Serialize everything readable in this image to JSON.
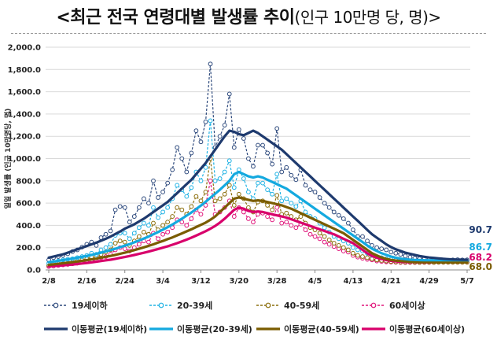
{
  "title": {
    "main": "<최근 전국 연령대별 발생률 추이",
    "sub": "(인구 10만명 당, 명)>"
  },
  "chart_data": {
    "type": "line",
    "ylabel": "일일 발생률 (인구 10만명당, 명)",
    "ylim": [
      0,
      2000
    ],
    "yticks": [
      "0.0",
      "200.0",
      "400.0",
      "600.0",
      "800.0",
      "1,000.0",
      "1,200.0",
      "1,400.0",
      "1,600.0",
      "1,800.0",
      "2,000.0"
    ],
    "xticks": [
      "2/8",
      "2/16",
      "2/24",
      "3/4",
      "3/12",
      "3/20",
      "3/28",
      "4/5",
      "4/13",
      "4/21",
      "4/29",
      "5/7"
    ],
    "x_start": "2/8",
    "x_end": "5/7",
    "series": [
      {
        "name": "19세이하",
        "kind": "daily",
        "color": "#2e4a7d",
        "values": [
          90,
          110,
          120,
          130,
          145,
          165,
          180,
          205,
          230,
          250,
          220,
          290,
          320,
          350,
          540,
          570,
          560,
          430,
          480,
          560,
          640,
          600,
          800,
          650,
          700,
          780,
          900,
          1100,
          1000,
          880,
          1050,
          1250,
          1150,
          1330,
          1850,
          1100,
          1200,
          1300,
          1580,
          1100,
          1260,
          1180,
          1000,
          930,
          1120,
          1120,
          1050,
          950,
          1270,
          880,
          920,
          850,
          810,
          900,
          760,
          720,
          700,
          650,
          600,
          560,
          520,
          490,
          460,
          420,
          360,
          300,
          300,
          260,
          220,
          200,
          190,
          180,
          160,
          150,
          140,
          125,
          115,
          105,
          100,
          100,
          95,
          90,
          90,
          85,
          85,
          90,
          92,
          90,
          91
        ]
      },
      {
        "name": "20-39세",
        "kind": "daily",
        "color": "#1fb2e4",
        "values": [
          60,
          70,
          80,
          90,
          95,
          100,
          110,
          120,
          130,
          150,
          140,
          180,
          200,
          230,
          310,
          330,
          330,
          280,
          330,
          380,
          420,
          400,
          560,
          470,
          520,
          560,
          640,
          760,
          720,
          660,
          740,
          880,
          800,
          920,
          1340,
          800,
          820,
          880,
          980,
          740,
          900,
          820,
          700,
          640,
          780,
          780,
          720,
          680,
          860,
          620,
          640,
          600,
          570,
          620,
          520,
          480,
          460,
          420,
          380,
          340,
          300,
          280,
          260,
          240,
          200,
          180,
          170,
          150,
          130,
          120,
          110,
          100,
          95,
          90,
          88,
          85,
          82,
          80,
          85,
          86,
          87,
          86,
          87,
          86,
          87,
          86,
          87,
          86,
          86.7
        ]
      },
      {
        "name": "40-59세",
        "kind": "daily",
        "color": "#8a6d0a",
        "values": [
          40,
          45,
          50,
          55,
          60,
          70,
          80,
          90,
          100,
          115,
          110,
          140,
          160,
          180,
          240,
          260,
          250,
          220,
          260,
          300,
          340,
          320,
          420,
          360,
          400,
          430,
          480,
          560,
          540,
          500,
          570,
          660,
          620,
          700,
          1000,
          620,
          640,
          680,
          760,
          580,
          680,
          640,
          560,
          520,
          610,
          620,
          580,
          540,
          670,
          500,
          510,
          480,
          450,
          480,
          420,
          380,
          360,
          330,
          300,
          270,
          240,
          220,
          200,
          180,
          150,
          130,
          120,
          110,
          100,
          90,
          85,
          80,
          75,
          72,
          70,
          68,
          70,
          68,
          67,
          68,
          68,
          67,
          68,
          68,
          68,
          68,
          68,
          68,
          68
        ]
      },
      {
        "name": "60세이상",
        "kind": "daily",
        "color": "#e0147a",
        "values": [
          30,
          35,
          40,
          45,
          50,
          55,
          60,
          70,
          80,
          90,
          85,
          110,
          120,
          140,
          180,
          200,
          190,
          170,
          200,
          230,
          260,
          250,
          330,
          280,
          320,
          340,
          380,
          450,
          430,
          400,
          460,
          540,
          500,
          580,
          800,
          500,
          520,
          560,
          620,
          480,
          560,
          520,
          460,
          430,
          500,
          510,
          480,
          450,
          560,
          420,
          430,
          400,
          380,
          410,
          360,
          320,
          300,
          280,
          250,
          230,
          210,
          190,
          170,
          160,
          130,
          115,
          105,
          95,
          90,
          80,
          76,
          72,
          70,
          68,
          67,
          66,
          67,
          66,
          66,
          67,
          67,
          67,
          68,
          68,
          68,
          68,
          68,
          68,
          68.2
        ]
      },
      {
        "name": "이동평균(19세이하)",
        "kind": "avg",
        "color": "#1e3a6e",
        "values": [
          110,
          120,
          130,
          140,
          155,
          170,
          185,
          200,
          215,
          230,
          245,
          262,
          280,
          300,
          322,
          345,
          370,
          390,
          410,
          435,
          460,
          490,
          520,
          550,
          580,
          610,
          650,
          690,
          730,
          770,
          810,
          860,
          910,
          960,
          1020,
          1080,
          1140,
          1200,
          1250,
          1240,
          1220,
          1210,
          1230,
          1250,
          1230,
          1200,
          1170,
          1140,
          1110,
          1080,
          1040,
          1000,
          960,
          920,
          880,
          840,
          800,
          760,
          720,
          680,
          640,
          600,
          560,
          520,
          480,
          440,
          400,
          360,
          320,
          290,
          260,
          230,
          205,
          185,
          170,
          155,
          145,
          135,
          125,
          118,
          112,
          108,
          104,
          100,
          97,
          95,
          93,
          92,
          91
        ]
      },
      {
        "name": "이동평균(20-39세)",
        "kind": "avg",
        "color": "#14a9df",
        "values": [
          70,
          75,
          82,
          88,
          95,
          102,
          110,
          118,
          126,
          135,
          145,
          155,
          166,
          178,
          190,
          204,
          218,
          232,
          248,
          264,
          282,
          300,
          320,
          340,
          362,
          384,
          408,
          434,
          460,
          488,
          516,
          546,
          578,
          612,
          648,
          684,
          720,
          760,
          800,
          860,
          880,
          860,
          840,
          830,
          840,
          830,
          810,
          790,
          770,
          750,
          730,
          700,
          670,
          640,
          610,
          580,
          550,
          520,
          490,
          460,
          430,
          400,
          370,
          340,
          310,
          280,
          250,
          220,
          190,
          170,
          150,
          135,
          120,
          110,
          102,
          96,
          92,
          90,
          88,
          87,
          87,
          87,
          87,
          87,
          87,
          87,
          87,
          86.8,
          86.7
        ]
      },
      {
        "name": "이동평균(40-59세)",
        "kind": "avg",
        "color": "#7a5c00",
        "values": [
          45,
          50,
          55,
          60,
          65,
          70,
          76,
          82,
          88,
          95,
          102,
          110,
          118,
          126,
          135,
          145,
          155,
          166,
          178,
          190,
          203,
          216,
          230,
          245,
          260,
          276,
          292,
          310,
          328,
          346,
          365,
          385,
          405,
          425,
          450,
          480,
          520,
          560,
          600,
          640,
          650,
          640,
          630,
          620,
          625,
          620,
          610,
          600,
          590,
          580,
          565,
          550,
          530,
          510,
          490,
          470,
          450,
          430,
          410,
          390,
          370,
          350,
          330,
          300,
          270,
          240,
          210,
          180,
          150,
          130,
          112,
          100,
          90,
          84,
          80,
          76,
          73,
          71,
          70,
          69,
          69,
          68,
          68,
          68,
          68,
          68,
          68,
          68,
          68
        ]
      },
      {
        "name": "이동평균(60세이상)",
        "kind": "avg",
        "color": "#d8006b",
        "values": [
          32,
          35,
          38,
          41,
          45,
          49,
          53,
          58,
          63,
          68,
          74,
          80,
          86,
          92,
          100,
          108,
          116,
          125,
          134,
          144,
          154,
          165,
          176,
          188,
          200,
          212,
          226,
          240,
          256,
          272,
          290,
          308,
          328,
          348,
          370,
          395,
          425,
          460,
          500,
          540,
          560,
          550,
          530,
          520,
          525,
          520,
          510,
          500,
          490,
          480,
          470,
          455,
          440,
          425,
          410,
          395,
          380,
          365,
          350,
          335,
          320,
          300,
          280,
          260,
          240,
          210,
          180,
          150,
          125,
          110,
          98,
          88,
          82,
          76,
          73,
          71,
          70,
          69,
          68,
          68,
          68,
          68,
          68,
          68,
          68,
          68,
          68,
          68,
          68.2
        ]
      }
    ],
    "end_labels": [
      {
        "text": "90.7",
        "color": "#1e3a6e"
      },
      {
        "text": "86.7",
        "color": "#14a9df"
      },
      {
        "text": "68.2",
        "color": "#d8006b"
      },
      {
        "text": "68.0",
        "color": "#7a5c00"
      }
    ]
  },
  "legend": [
    {
      "label": "19세이하",
      "kind": "daily",
      "color": "#2e4a7d"
    },
    {
      "label": "20-39세",
      "kind": "daily",
      "color": "#1fb2e4"
    },
    {
      "label": "40-59세",
      "kind": "daily",
      "color": "#8a6d0a"
    },
    {
      "label": "60세이상",
      "kind": "daily",
      "color": "#e0147a"
    },
    {
      "label": "이동평균(19세이하)",
      "kind": "avg",
      "color": "#1e3a6e"
    },
    {
      "label": "이동평균(20-39세)",
      "kind": "avg",
      "color": "#14a9df"
    },
    {
      "label": "이동평균(40-59세)",
      "kind": "avg",
      "color": "#7a5c00"
    },
    {
      "label": "이동평균(60세이상)",
      "kind": "avg",
      "color": "#d8006b"
    }
  ]
}
